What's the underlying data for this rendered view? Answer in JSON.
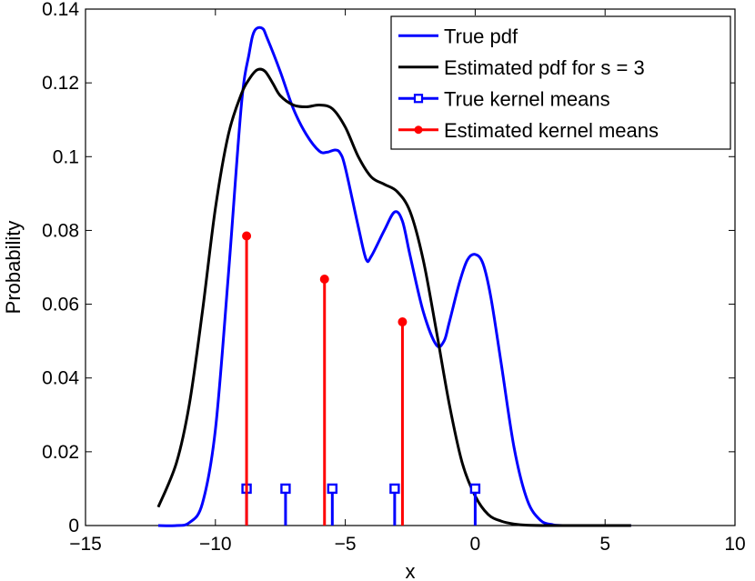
{
  "chart_data": {
    "type": "line",
    "title": "",
    "xlabel": "x",
    "ylabel": "Probability",
    "xlim": [
      -15,
      10
    ],
    "ylim": [
      0,
      0.14
    ],
    "xticks": [
      -15,
      -10,
      -5,
      0,
      5,
      10
    ],
    "xtick_labels": [
      "−15",
      "−10",
      "−5",
      "0",
      "5",
      "10"
    ],
    "yticks": [
      0,
      0.02,
      0.04,
      0.06,
      0.08,
      0.1,
      0.12,
      0.14
    ],
    "ytick_labels": [
      "0",
      "0.02",
      "0.04",
      "0.06",
      "0.08",
      "0.1",
      "0.12",
      "0.14"
    ],
    "grid": false,
    "legend_position": "top-right",
    "series": [
      {
        "name": "True pdf",
        "kind": "line",
        "color": "#0000ff",
        "x": [
          -12.2,
          -11.5,
          -11.0,
          -10.5,
          -10.0,
          -9.5,
          -9.0,
          -8.7,
          -8.5,
          -8.2,
          -8.0,
          -7.5,
          -7.0,
          -6.5,
          -6.0,
          -5.7,
          -5.4,
          -5.2,
          -5.0,
          -4.5,
          -4.2,
          -4.0,
          -3.5,
          -3.1,
          -2.8,
          -2.5,
          -2.0,
          -1.5,
          -1.2,
          -1.0,
          -0.6,
          -0.3,
          0.0,
          0.3,
          0.6,
          1.0,
          1.5,
          2.0,
          2.5,
          3.0,
          3.5,
          4.0,
          5.0,
          6.0
        ],
        "y": [
          0.0,
          0.0,
          0.0008,
          0.006,
          0.026,
          0.068,
          0.114,
          0.128,
          0.134,
          0.1348,
          0.132,
          0.123,
          0.113,
          0.106,
          0.1015,
          0.1012,
          0.1018,
          0.101,
          0.097,
          0.081,
          0.0722,
          0.073,
          0.08,
          0.085,
          0.0825,
          0.073,
          0.058,
          0.049,
          0.05,
          0.055,
          0.066,
          0.072,
          0.0735,
          0.071,
          0.062,
          0.044,
          0.021,
          0.007,
          0.0015,
          0.0002,
          0.0,
          0.0,
          0.0,
          0.0
        ]
      },
      {
        "name": "Estimated pdf for s = 3",
        "kind": "line",
        "color": "#000000",
        "x": [
          -12.2,
          -11.5,
          -11.0,
          -10.5,
          -10.0,
          -9.5,
          -9.0,
          -8.7,
          -8.4,
          -8.1,
          -7.8,
          -7.5,
          -7.0,
          -6.5,
          -6.0,
          -5.5,
          -5.0,
          -4.5,
          -4.0,
          -3.5,
          -3.0,
          -2.5,
          -2.0,
          -1.5,
          -1.0,
          -0.5,
          0.0,
          0.5,
          1.0,
          1.5,
          2.0,
          3.0,
          4.0,
          5.0,
          6.0
        ],
        "y": [
          0.005,
          0.017,
          0.033,
          0.058,
          0.086,
          0.106,
          0.117,
          0.121,
          0.1235,
          0.1232,
          0.12,
          0.1165,
          0.114,
          0.1135,
          0.114,
          0.113,
          0.108,
          0.1,
          0.0945,
          0.0925,
          0.0905,
          0.085,
          0.072,
          0.053,
          0.033,
          0.017,
          0.008,
          0.003,
          0.0012,
          0.0004,
          0.0001,
          0.0,
          0.0,
          0.0,
          0.0
        ]
      },
      {
        "name": "True kernel means",
        "kind": "stem",
        "marker": "square",
        "color": "#0000ff",
        "x": [
          -8.8,
          -7.3,
          -5.5,
          -3.1,
          0.0
        ],
        "y": [
          0.01,
          0.01,
          0.01,
          0.01,
          0.01
        ]
      },
      {
        "name": "Estimated kernel means",
        "kind": "stem",
        "marker": "dot",
        "color": "#ff0000",
        "x": [
          -8.8,
          -5.8,
          -2.8
        ],
        "y": [
          0.0785,
          0.0668,
          0.0552
        ]
      }
    ]
  }
}
